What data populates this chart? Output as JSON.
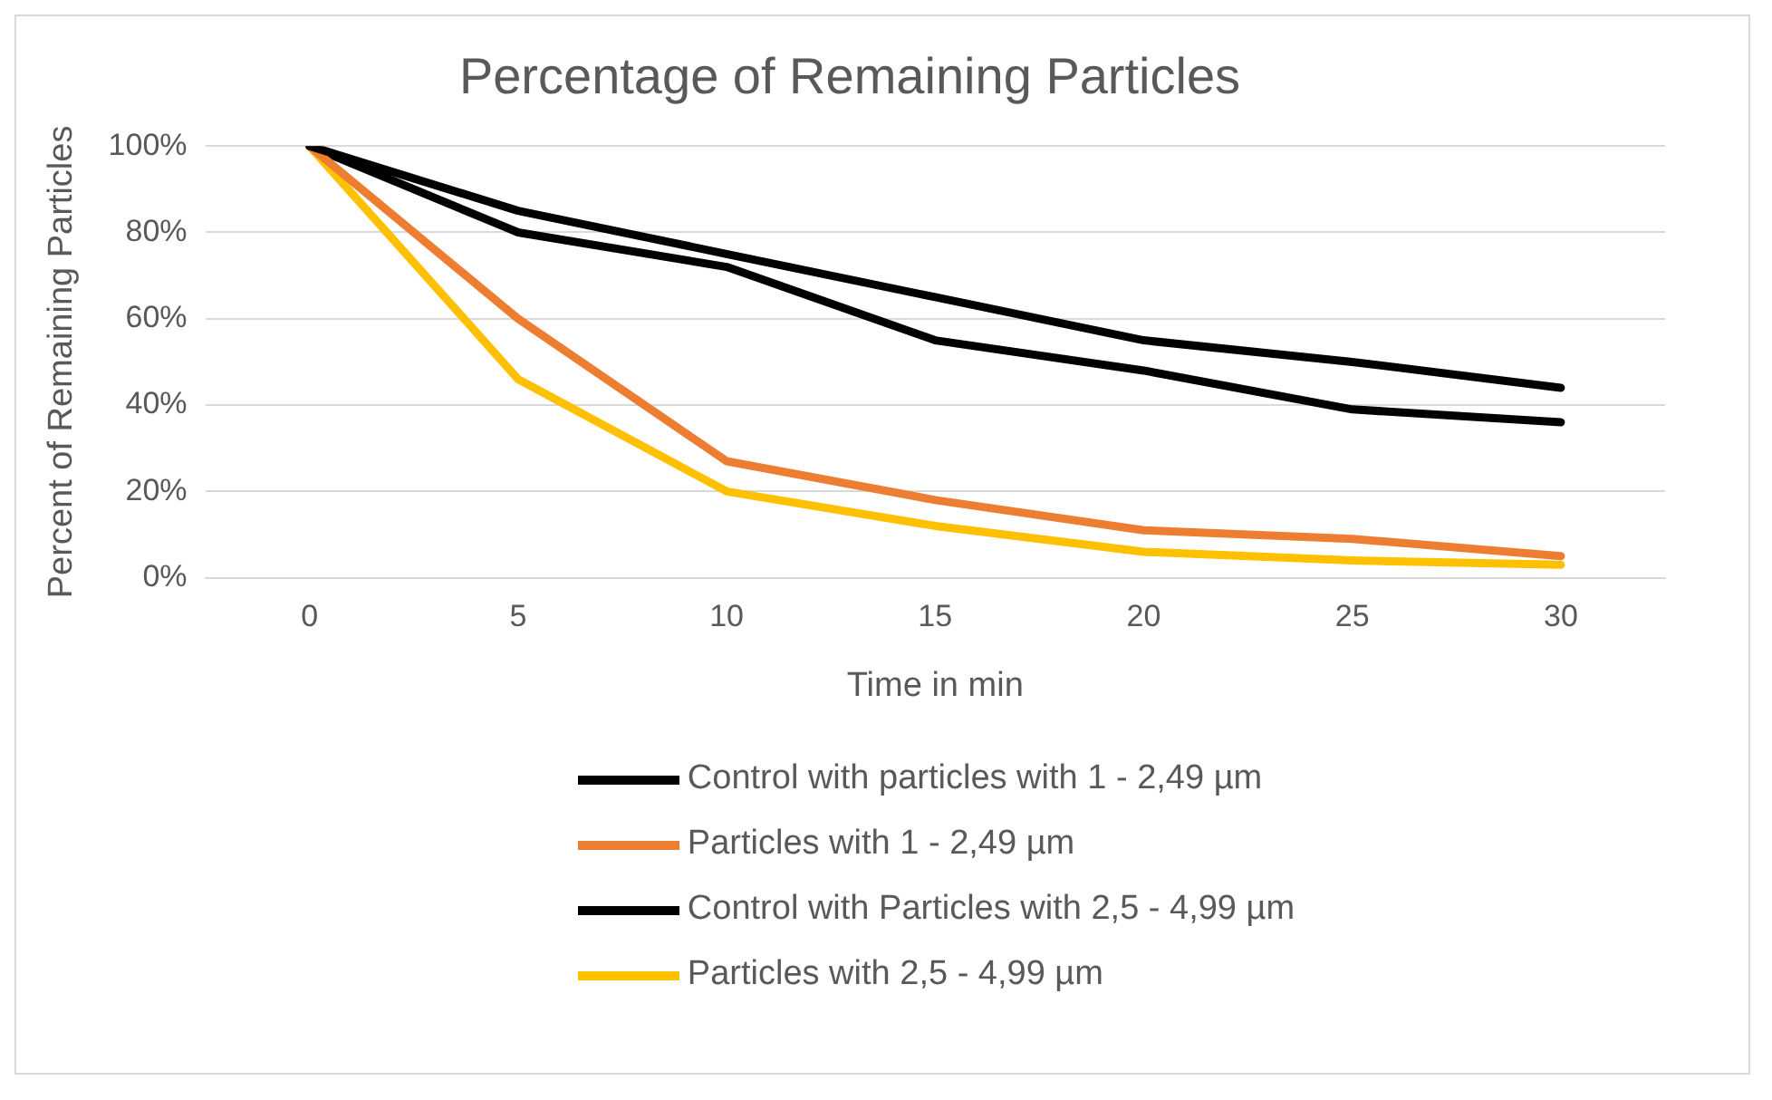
{
  "chart_data": {
    "type": "line",
    "title": "Percentage of Remaining Particles",
    "xlabel": "Time in min",
    "ylabel": "Percent of Remaining Particles",
    "categories": [
      "0",
      "5",
      "10",
      "15",
      "20",
      "25",
      "30"
    ],
    "series": [
      {
        "name": "Control with particles with 1 - 2,49 µm",
        "color": "#000000",
        "values": [
          100,
          85,
          75,
          65,
          55,
          50,
          44
        ]
      },
      {
        "name": "Particles with 1 - 2,49 µm",
        "color": "#ed7d31",
        "values": [
          100,
          60,
          27,
          18,
          11,
          9,
          5
        ]
      },
      {
        "name": "Control with Particles with 2,5 - 4,99 µm",
        "color": "#000000",
        "values": [
          100,
          80,
          72,
          55,
          48,
          39,
          36
        ]
      },
      {
        "name": "Particles with 2,5 - 4,99 µm",
        "color": "#ffc000",
        "values": [
          100,
          46,
          20,
          12,
          6,
          4,
          3
        ]
      }
    ],
    "ylim": [
      0,
      100
    ],
    "yticks": [
      {
        "value": 0,
        "label": "0%"
      },
      {
        "value": 20,
        "label": "20%"
      },
      {
        "value": 40,
        "label": "40%"
      },
      {
        "value": 60,
        "label": "60%"
      },
      {
        "value": 80,
        "label": "80%"
      },
      {
        "value": 100,
        "label": "100%"
      }
    ],
    "grid": "y",
    "legend": "bottom",
    "marker": "none",
    "line_style": "solid"
  }
}
